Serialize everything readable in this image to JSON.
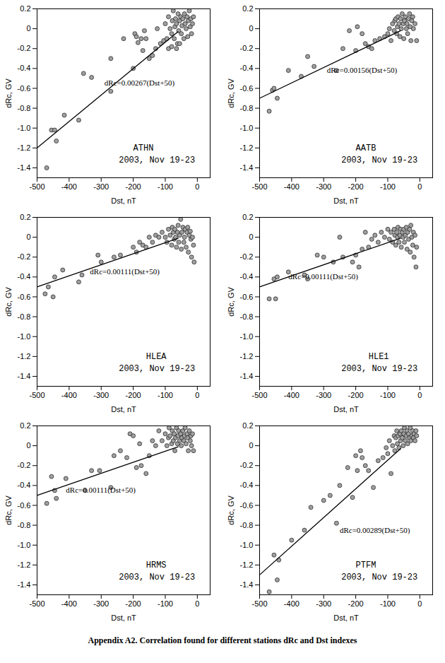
{
  "caption": "Appendix A2. Correlation found for different stations dRc and Dst indexes",
  "chart_data": [
    {
      "type": "scatter",
      "xlabel": "Dst, nT",
      "ylabel": "dRc, GV",
      "grid": false,
      "xlim": [
        -500,
        40
      ],
      "xticks": [
        -500,
        -400,
        -300,
        -200,
        -100,
        0
      ],
      "ylim": [
        -1.5,
        0.2
      ],
      "yticks": [
        0.2,
        0,
        -0.2,
        -0.4,
        -0.6,
        -0.8,
        {
          "value": -1,
          "label": "-1.0"
        },
        -1.2,
        -1.4
      ],
      "annotations": [
        {
          "text": "dRc=0.00267(Dst+50)",
          "x": -290,
          "y": -0.55
        },
        {
          "text": "ATHN",
          "x": -200,
          "y": -1.2
        },
        {
          "text": "2003, Nov 19-23",
          "x": -245,
          "y": -1.32
        }
      ],
      "series": [
        {
          "type": "scatter",
          "marker": "circle",
          "color": "#a0a0a0",
          "x": [
            -470,
            -455,
            -445,
            -440,
            -415,
            -370,
            -355,
            -330,
            -270,
            -270,
            -230,
            -200,
            -195,
            -190,
            -185,
            -175,
            -170,
            -165,
            -160,
            -150,
            -140,
            -130,
            -125,
            -115,
            -105,
            -100,
            -95,
            -90,
            -85,
            -80,
            -78,
            -75,
            -72,
            -70,
            -68,
            -65,
            -62,
            -60,
            -58,
            -55,
            -52,
            -50,
            -48,
            -45,
            -42,
            -40,
            -38,
            -35,
            -32,
            -30,
            -28,
            -25,
            -22,
            -20,
            -18,
            -15,
            -12,
            -90,
            -80,
            -65,
            -55
          ],
          "values": [
            -1.4,
            -1.02,
            -1.02,
            -1.13,
            -0.87,
            -0.92,
            -0.45,
            -0.49,
            -0.63,
            -0.3,
            -0.1,
            -0.4,
            -0.05,
            -0.08,
            -0.14,
            -0.1,
            -0.22,
            -0.02,
            -0.1,
            -0.3,
            -0.27,
            -0.2,
            0.0,
            -0.15,
            -0.12,
            0.05,
            -0.1,
            0.12,
            0.0,
            -0.05,
            0.08,
            0.18,
            -0.1,
            0.02,
            0.1,
            0.05,
            -0.15,
            0.15,
            -0.02,
            0.08,
            0.12,
            -0.05,
            0.03,
            0.1,
            -0.1,
            0.15,
            0.05,
            0.0,
            0.12,
            -0.08,
            0.08,
            0.18,
            0.02,
            0.1,
            -0.05,
            0.05,
            0.12,
            -0.2,
            -0.18,
            -0.2,
            -0.15
          ]
        },
        {
          "type": "line",
          "color": "#000000",
          "x": [
            -500,
            -60
          ],
          "values": [
            -1.2,
            -0.03
          ]
        }
      ]
    },
    {
      "type": "scatter",
      "xlabel": "Dst, nT",
      "ylabel": "dRc, GV",
      "grid": false,
      "xlim": [
        -500,
        40
      ],
      "xticks": [
        -500,
        -400,
        -300,
        -200,
        -100,
        0
      ],
      "ylim": [
        -1.5,
        0.2
      ],
      "yticks": [
        0.2,
        0,
        -0.2,
        -0.4,
        -0.6,
        -0.8,
        {
          "value": -1,
          "label": "-1.0"
        },
        -1.2,
        -1.4
      ],
      "annotations": [
        {
          "text": "dRc=0.00156(Dst+50)",
          "x": -290,
          "y": -0.42
        },
        {
          "text": "AATB",
          "x": -200,
          "y": -1.2
        },
        {
          "text": "2003, Nov 19-23",
          "x": -245,
          "y": -1.32
        }
      ],
      "series": [
        {
          "type": "scatter",
          "marker": "circle",
          "color": "#a0a0a0",
          "x": [
            -470,
            -460,
            -455,
            -445,
            -410,
            -370,
            -350,
            -330,
            -260,
            -240,
            -220,
            -200,
            -195,
            -180,
            -170,
            -160,
            -150,
            -140,
            -125,
            -110,
            -100,
            -95,
            -90,
            -85,
            -80,
            -78,
            -75,
            -72,
            -70,
            -68,
            -65,
            -62,
            -60,
            -58,
            -55,
            -52,
            -50,
            -48,
            -45,
            -42,
            -40,
            -38,
            -35,
            -32,
            -30,
            -28,
            -25,
            -22,
            -20,
            -15,
            -10
          ],
          "values": [
            -0.83,
            -0.62,
            -0.6,
            -0.7,
            -0.42,
            -0.48,
            -0.28,
            -0.38,
            -0.42,
            -0.2,
            -0.02,
            -0.22,
            0.02,
            -0.05,
            -0.15,
            -0.18,
            -0.2,
            -0.12,
            -0.1,
            -0.08,
            -0.05,
            0.0,
            -0.12,
            0.05,
            -0.02,
            0.08,
            0.1,
            -0.05,
            0.02,
            0.12,
            0.05,
            -0.08,
            0.1,
            0.0,
            0.15,
            0.05,
            -0.1,
            0.08,
            0.12,
            0.0,
            0.05,
            -0.05,
            0.1,
            0.15,
            0.02,
            -0.12,
            0.08,
            0.12,
            0.0,
            0.05,
            -0.12
          ]
        },
        {
          "type": "line",
          "color": "#000000",
          "x": [
            -500,
            -60
          ],
          "values": [
            -0.7,
            -0.02
          ]
        }
      ]
    },
    {
      "type": "scatter",
      "xlabel": "Dst, nT",
      "ylabel": "dRc, GV",
      "grid": false,
      "xlim": [
        -500,
        40
      ],
      "xticks": [
        -500,
        -400,
        -300,
        -200,
        -100,
        0
      ],
      "ylim": [
        -1.5,
        0.2
      ],
      "yticks": [
        0.2,
        0,
        -0.2,
        -0.4,
        -0.6,
        -0.8,
        {
          "value": -1,
          "label": "-1.0"
        },
        -1.2,
        -1.4
      ],
      "annotations": [
        {
          "text": "dRc=0.00111(Dst+50)",
          "x": -335,
          "y": -0.35
        },
        {
          "text": "HLEA",
          "x": -160,
          "y": -1.2
        },
        {
          "text": "2003, Nov 19-23",
          "x": -245,
          "y": -1.32
        }
      ],
      "series": [
        {
          "type": "scatter",
          "marker": "circle",
          "color": "#a0a0a0",
          "x": [
            -475,
            -465,
            -450,
            -445,
            -420,
            -370,
            -360,
            -310,
            -300,
            -260,
            -240,
            -200,
            -190,
            -180,
            -170,
            -160,
            -150,
            -140,
            -130,
            -120,
            -110,
            -100,
            -95,
            -90,
            -85,
            -80,
            -78,
            -75,
            -72,
            -70,
            -68,
            -65,
            -62,
            -60,
            -58,
            -55,
            -52,
            -50,
            -48,
            -45,
            -42,
            -40,
            -38,
            -35,
            -32,
            -30,
            -28,
            -25,
            -22,
            -20,
            -18,
            -15,
            -12,
            -10
          ],
          "values": [
            -0.57,
            -0.5,
            -0.6,
            -0.4,
            -0.33,
            -0.45,
            -0.38,
            -0.18,
            -0.25,
            -0.2,
            -0.18,
            -0.1,
            -0.15,
            -0.05,
            -0.08,
            -0.1,
            0.0,
            -0.05,
            0.02,
            0.0,
            0.05,
            0.0,
            -0.05,
            0.08,
            0.02,
            -0.08,
            0.1,
            0.05,
            -0.02,
            0.08,
            0.0,
            -0.1,
            0.05,
            0.12,
            -0.05,
            0.02,
            0.18,
            -0.12,
            0.05,
            0.1,
            -0.05,
            0.0,
            0.08,
            -0.1,
            0.05,
            0.1,
            -0.15,
            0.02,
            0.06,
            -0.02,
            -0.2,
            0.0,
            -0.08,
            -0.25
          ]
        },
        {
          "type": "line",
          "color": "#000000",
          "x": [
            -500,
            -60
          ],
          "values": [
            -0.5,
            -0.01
          ]
        }
      ]
    },
    {
      "type": "scatter",
      "xlabel": "Dst, nT",
      "ylabel": "dRc, GV",
      "grid": false,
      "xlim": [
        -500,
        40
      ],
      "xticks": [
        -500,
        -400,
        -300,
        -200,
        -100,
        0
      ],
      "ylim": [
        -1.5,
        0.2
      ],
      "yticks": [
        0.2,
        0,
        -0.2,
        -0.4,
        -0.6,
        -0.8,
        {
          "value": -1,
          "label": "-1.0"
        },
        -1.2,
        -1.4
      ],
      "annotations": [
        {
          "text": "dRc=0.00111(Dst+50)",
          "x": -410,
          "y": -0.4
        },
        {
          "text": "HLE1",
          "x": -160,
          "y": -1.2
        },
        {
          "text": "2003, Nov 19-23",
          "x": -245,
          "y": -1.32
        }
      ],
      "series": [
        {
          "type": "scatter",
          "marker": "circle",
          "color": "#a0a0a0",
          "x": [
            -470,
            -455,
            -450,
            -445,
            -410,
            -360,
            -350,
            -320,
            -300,
            -270,
            -250,
            -240,
            -210,
            -200,
            -190,
            -180,
            -170,
            -160,
            -150,
            -140,
            -130,
            -120,
            -110,
            -100,
            -95,
            -90,
            -85,
            -80,
            -78,
            -75,
            -72,
            -70,
            -68,
            -65,
            -62,
            -60,
            -58,
            -55,
            -52,
            -50,
            -48,
            -45,
            -42,
            -40,
            -38,
            -35,
            -32,
            -30,
            -28,
            -25,
            -22,
            -20,
            -18,
            -15,
            -12,
            -10
          ],
          "values": [
            -0.62,
            -0.42,
            -0.62,
            -0.4,
            -0.35,
            -0.38,
            -0.42,
            -0.18,
            -0.2,
            -0.25,
            0.0,
            -0.2,
            -0.25,
            -0.18,
            -0.3,
            -0.12,
            0.05,
            -0.1,
            -0.02,
            0.02,
            -0.05,
            0.05,
            0.0,
            0.08,
            -0.02,
            0.05,
            -0.05,
            0.08,
            0.02,
            -0.08,
            0.05,
            0.0,
            0.1,
            -0.05,
            0.02,
            0.08,
            -0.1,
            0.05,
            0.0,
            0.08,
            -0.05,
            0.02,
            0.1,
            -0.12,
            0.05,
            -0.02,
            0.08,
            -0.15,
            0.12,
            0.0,
            -0.08,
            0.05,
            -0.2,
            0.02,
            -0.3,
            -0.1
          ]
        },
        {
          "type": "line",
          "color": "#000000",
          "x": [
            -500,
            -60
          ],
          "values": [
            -0.5,
            -0.01
          ]
        }
      ]
    },
    {
      "type": "scatter",
      "xlabel": "Dst, nT",
      "ylabel": "dRc, GV",
      "grid": false,
      "xlim": [
        -500,
        40
      ],
      "xticks": [
        -500,
        -400,
        -300,
        -200,
        -100,
        0
      ],
      "ylim": [
        -1.5,
        0.2
      ],
      "yticks": [
        0.2,
        0,
        -0.2,
        -0.4,
        -0.6,
        -0.8,
        {
          "value": -1,
          "label": "-1.0"
        },
        -1.2,
        -1.4
      ],
      "annotations": [
        {
          "text": "dRc=0.00111(Dst+50)",
          "x": -410,
          "y": -0.45
        },
        {
          "text": "HRMS",
          "x": -160,
          "y": -1.2
        },
        {
          "text": "2003, Nov 19-23",
          "x": -245,
          "y": -1.32
        }
      ],
      "series": [
        {
          "type": "scatter",
          "marker": "circle",
          "color": "#a0a0a0",
          "x": [
            -470,
            -455,
            -445,
            -440,
            -410,
            -350,
            -330,
            -305,
            -270,
            -260,
            -240,
            -220,
            -210,
            -200,
            -190,
            -180,
            -175,
            -160,
            -150,
            -140,
            -130,
            -120,
            -110,
            -100,
            -95,
            -90,
            -88,
            -85,
            -80,
            -78,
            -75,
            -72,
            -70,
            -68,
            -65,
            -62,
            -60,
            -58,
            -55,
            -52,
            -50,
            -48,
            -45,
            -42,
            -40,
            -38,
            -35,
            -32,
            -30,
            -28,
            -25,
            -22,
            -20,
            -18,
            -15,
            -12
          ],
          "values": [
            -0.58,
            -0.31,
            -0.45,
            -0.53,
            -0.33,
            -0.45,
            -0.25,
            -0.25,
            -0.42,
            -0.1,
            -0.05,
            -0.12,
            0.12,
            0.1,
            -0.22,
            0.02,
            -0.2,
            -0.28,
            -0.1,
            0.05,
            0.0,
            0.15,
            0.05,
            0.12,
            0.0,
            0.08,
            0.18,
            0.1,
            0.02,
            0.15,
            0.05,
            0.12,
            -0.05,
            0.08,
            0.18,
            0.02,
            0.1,
            0.15,
            0.05,
            0.12,
            0.0,
            0.08,
            0.15,
            0.05,
            0.1,
            0.18,
            0.02,
            0.12,
            0.08,
            -0.05,
            0.15,
            0.05,
            0.1,
            0.0,
            0.12,
            -0.05
          ]
        },
        {
          "type": "line",
          "color": "#000000",
          "x": [
            -500,
            -60
          ],
          "values": [
            -0.5,
            -0.01
          ]
        }
      ]
    },
    {
      "type": "scatter",
      "xlabel": "Dst, nT",
      "ylabel": "dRc, GV",
      "grid": false,
      "xlim": [
        -500,
        40
      ],
      "xticks": [
        -500,
        -400,
        -300,
        -200,
        -100,
        0
      ],
      "ylim": [
        -1.5,
        0.2
      ],
      "yticks": [
        0.2,
        0,
        -0.2,
        -0.4,
        -0.6,
        -0.8,
        {
          "value": -1,
          "label": "-1.0"
        },
        -1.2,
        -1.4
      ],
      "annotations": [
        {
          "text": "dRc=0.00289(Dst+50)",
          "x": -250,
          "y": -0.85
        },
        {
          "text": "PTFM",
          "x": -200,
          "y": -1.2
        },
        {
          "text": "2003, Nov 19-23",
          "x": -245,
          "y": -1.32
        }
      ],
      "series": [
        {
          "type": "scatter",
          "marker": "circle",
          "color": "#a0a0a0",
          "x": [
            -470,
            -455,
            -445,
            -440,
            -400,
            -360,
            -340,
            -300,
            -280,
            -260,
            -250,
            -225,
            -210,
            -200,
            -195,
            -185,
            -180,
            -170,
            -160,
            -145,
            -130,
            -115,
            -105,
            -100,
            -95,
            -90,
            -85,
            -80,
            -78,
            -75,
            -72,
            -70,
            -68,
            -65,
            -62,
            -60,
            -58,
            -55,
            -52,
            -50,
            -48,
            -45,
            -42,
            -40,
            -38,
            -35,
            -32,
            -30,
            -28,
            -25,
            -22,
            -20,
            -18,
            -15,
            -12,
            -10
          ],
          "values": [
            -1.47,
            -1.1,
            -1.35,
            -1.15,
            -0.95,
            -0.85,
            -0.62,
            -0.55,
            -0.5,
            -0.78,
            -0.4,
            -0.22,
            -0.52,
            -0.1,
            -0.25,
            -0.05,
            -0.12,
            -0.2,
            -0.25,
            -0.42,
            -0.15,
            -0.12,
            -0.02,
            -0.08,
            0.05,
            -0.28,
            0.0,
            0.1,
            -0.05,
            0.08,
            0.15,
            0.02,
            0.1,
            -0.02,
            0.12,
            0.05,
            0.15,
            0.08,
            0.0,
            0.12,
            0.18,
            0.05,
            0.1,
            0.15,
            0.02,
            0.12,
            0.08,
            0.18,
            0.05,
            0.1,
            0.15,
            0.08,
            0.12,
            0.05,
            0.15,
            0.1
          ]
        },
        {
          "type": "line",
          "color": "#000000",
          "x": [
            -500,
            -60
          ],
          "values": [
            -1.3,
            -0.03
          ]
        }
      ]
    }
  ]
}
